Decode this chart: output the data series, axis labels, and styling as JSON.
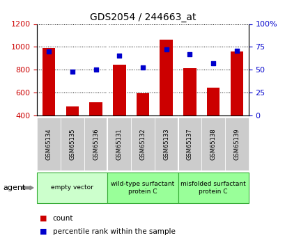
{
  "title": "GDS2054 / 244663_at",
  "samples": [
    "GSM65134",
    "GSM65135",
    "GSM65136",
    "GSM65131",
    "GSM65132",
    "GSM65133",
    "GSM65137",
    "GSM65138",
    "GSM65139"
  ],
  "counts": [
    990,
    475,
    515,
    840,
    595,
    1065,
    815,
    640,
    960
  ],
  "percentiles": [
    70,
    48,
    50,
    65,
    52,
    72,
    67,
    57,
    71
  ],
  "bar_bottom": 400,
  "ylim_left": [
    400,
    1200
  ],
  "ylim_right": [
    0,
    100
  ],
  "yticks_left": [
    400,
    600,
    800,
    1000,
    1200
  ],
  "yticks_right": [
    0,
    25,
    50,
    75,
    100
  ],
  "bar_color": "#cc0000",
  "dot_color": "#0000cc",
  "group_info": [
    {
      "start": 0,
      "end": 3,
      "label": "empty vector",
      "color": "#ccffcc"
    },
    {
      "start": 3,
      "end": 6,
      "label": "wild-type surfactant\nprotein C",
      "color": "#99ff99"
    },
    {
      "start": 6,
      "end": 9,
      "label": "misfolded surfactant\nprotein C",
      "color": "#99ff99"
    }
  ],
  "separator_indices": [
    3,
    6
  ],
  "agent_label": "agent",
  "legend_count_label": "count",
  "legend_pct_label": "percentile rank within the sample",
  "tick_area_color": "#cccccc",
  "group_border_color": "#33aa33"
}
